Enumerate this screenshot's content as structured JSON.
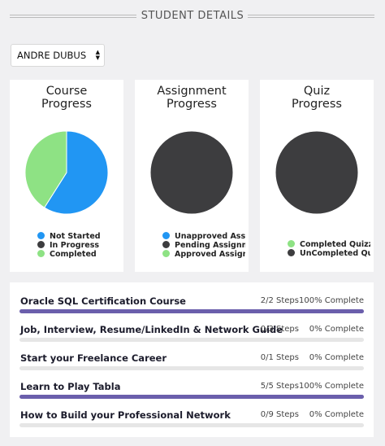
{
  "header": {
    "title": "STUDENT DETAILS"
  },
  "student_select": {
    "value": "ANDRE DUBUS"
  },
  "charts": [
    {
      "title_line1": "Course",
      "title_line2": "Progress",
      "legend": [
        "Not Started",
        "In Progress",
        "Completed"
      ],
      "colors": [
        "#2196f3",
        "#3d3d3f",
        "#8ee284"
      ],
      "values": [
        59,
        0,
        41
      ]
    },
    {
      "title_line1": "Assignment",
      "title_line2": "Progress",
      "legend": [
        "Unapproved Assignments",
        "Pending Assignments",
        "Approved Assignments"
      ],
      "colors": [
        "#2196f3",
        "#3d3d3f",
        "#8ee284"
      ],
      "values": [
        0,
        100,
        0
      ]
    },
    {
      "title_line1": "Quiz",
      "title_line2": "Progress",
      "legend": [
        "Completed Quizzes",
        "UnCompleted Quizzes"
      ],
      "colors": [
        "#8ee284",
        "#3d3d3f"
      ],
      "values": [
        0,
        100
      ]
    }
  ],
  "courses": [
    {
      "name": "Oracle SQL Certification Course",
      "steps": "2/2 Steps",
      "complete": "100% Complete",
      "progress": 1.0
    },
    {
      "name": "Job, Interview, Resume/LinkedIn & Network Guide",
      "steps": "0/3 Steps",
      "complete": "0% Complete",
      "progress": 0
    },
    {
      "name": "Start your Freelance Career",
      "steps": "0/1 Steps",
      "complete": "0% Complete",
      "progress": 0
    },
    {
      "name": "Learn to Play Tabla",
      "steps": "5/5 Steps",
      "complete": "100% Complete",
      "progress": 1.0
    },
    {
      "name": "How to Build your Professional Network",
      "steps": "0/9 Steps",
      "complete": "0% Complete",
      "progress": 0
    }
  ],
  "colors": {
    "accent": "#6b5fac",
    "track": "#e6e6e6"
  }
}
